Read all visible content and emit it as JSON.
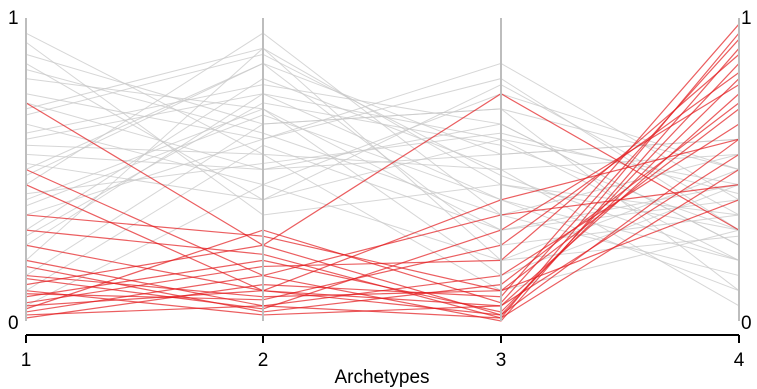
{
  "chart_data": {
    "type": "parallel_coordinates",
    "title": "",
    "xlabel": "Archetypes",
    "ylabel": "",
    "axes": [
      "1",
      "2",
      "3",
      "4"
    ],
    "ylim": [
      0,
      1
    ],
    "left_axis_labels": [
      "0",
      "1"
    ],
    "right_axis_labels": [
      "0",
      "1"
    ],
    "grid": false,
    "legend": "none",
    "colors": {
      "background_series": "#c8c8c8",
      "highlight_series": "#e31a1c",
      "axis": "#000000",
      "vertical_axes": "#bdbdbd"
    },
    "series": [
      {
        "group": "gray",
        "lines": [
          [
            0.95,
            0.55,
            0.1,
            0.3
          ],
          [
            0.85,
            0.4,
            0.6,
            0.45
          ],
          [
            0.7,
            0.9,
            0.2,
            0.5
          ],
          [
            0.6,
            0.75,
            0.4,
            0.2
          ],
          [
            0.5,
            0.85,
            0.55,
            0.6
          ],
          [
            0.4,
            0.7,
            0.3,
            0.4
          ],
          [
            0.88,
            0.65,
            0.7,
            0.1
          ],
          [
            0.75,
            0.6,
            0.8,
            0.3
          ],
          [
            0.3,
            0.8,
            0.5,
            0.55
          ],
          [
            0.55,
            0.5,
            0.65,
            0.25
          ],
          [
            0.2,
            0.9,
            0.45,
            0.35
          ],
          [
            0.65,
            0.45,
            0.75,
            0.5
          ],
          [
            0.45,
            0.95,
            0.35,
            0.15
          ],
          [
            0.35,
            0.6,
            0.85,
            0.4
          ],
          [
            0.8,
            0.7,
            0.15,
            0.45
          ],
          [
            0.25,
            0.75,
            0.6,
            0.2
          ],
          [
            0.58,
            0.55,
            0.5,
            0.05
          ],
          [
            0.92,
            0.35,
            0.45,
            0.3
          ],
          [
            0.15,
            0.65,
            0.7,
            0.5
          ],
          [
            0.48,
            0.85,
            0.25,
            0.35
          ],
          [
            0.72,
            0.5,
            0.55,
            0.6
          ],
          [
            0.38,
            0.68,
            0.4,
            0.1
          ],
          [
            0.62,
            0.78,
            0.65,
            0.25
          ],
          [
            0.1,
            0.58,
            0.3,
            0.45
          ],
          [
            0.52,
            0.4,
            0.78,
            0.35
          ],
          [
            0.83,
            0.62,
            0.35,
            0.55
          ],
          [
            0.28,
            0.72,
            0.58,
            0.3
          ],
          [
            0.68,
            0.88,
            0.48,
            0.2
          ],
          [
            0.42,
            0.52,
            0.62,
            0.42
          ],
          [
            0.05,
            0.45,
            0.2,
            0.28
          ]
        ]
      },
      {
        "group": "red",
        "lines": [
          [
            0.02,
            0.05,
            0.01,
            0.95
          ],
          [
            0.05,
            0.1,
            0.02,
            0.85
          ],
          [
            0.1,
            0.02,
            0.05,
            0.75
          ],
          [
            0.03,
            0.15,
            0.0,
            0.9
          ],
          [
            0.15,
            0.08,
            0.1,
            0.7
          ],
          [
            0.08,
            0.2,
            0.03,
            0.8
          ],
          [
            0.2,
            0.05,
            0.15,
            0.65
          ],
          [
            0.01,
            0.12,
            0.08,
            0.98
          ],
          [
            0.12,
            0.25,
            0.02,
            0.6
          ],
          [
            0.25,
            0.1,
            0.05,
            0.55
          ],
          [
            0.06,
            0.18,
            0.2,
            0.88
          ],
          [
            0.18,
            0.03,
            0.12,
            0.72
          ],
          [
            0.3,
            0.22,
            0.01,
            0.5
          ],
          [
            0.04,
            0.3,
            0.06,
            0.93
          ],
          [
            0.5,
            0.15,
            0.35,
            0.45
          ],
          [
            0.72,
            0.25,
            0.75,
            0.3
          ],
          [
            0.45,
            0.1,
            0.4,
            0.6
          ],
          [
            0.09,
            0.07,
            0.25,
            0.82
          ],
          [
            0.35,
            0.28,
            0.1,
            0.4
          ],
          [
            0.14,
            0.04,
            0.3,
            0.78
          ]
        ]
      }
    ]
  }
}
